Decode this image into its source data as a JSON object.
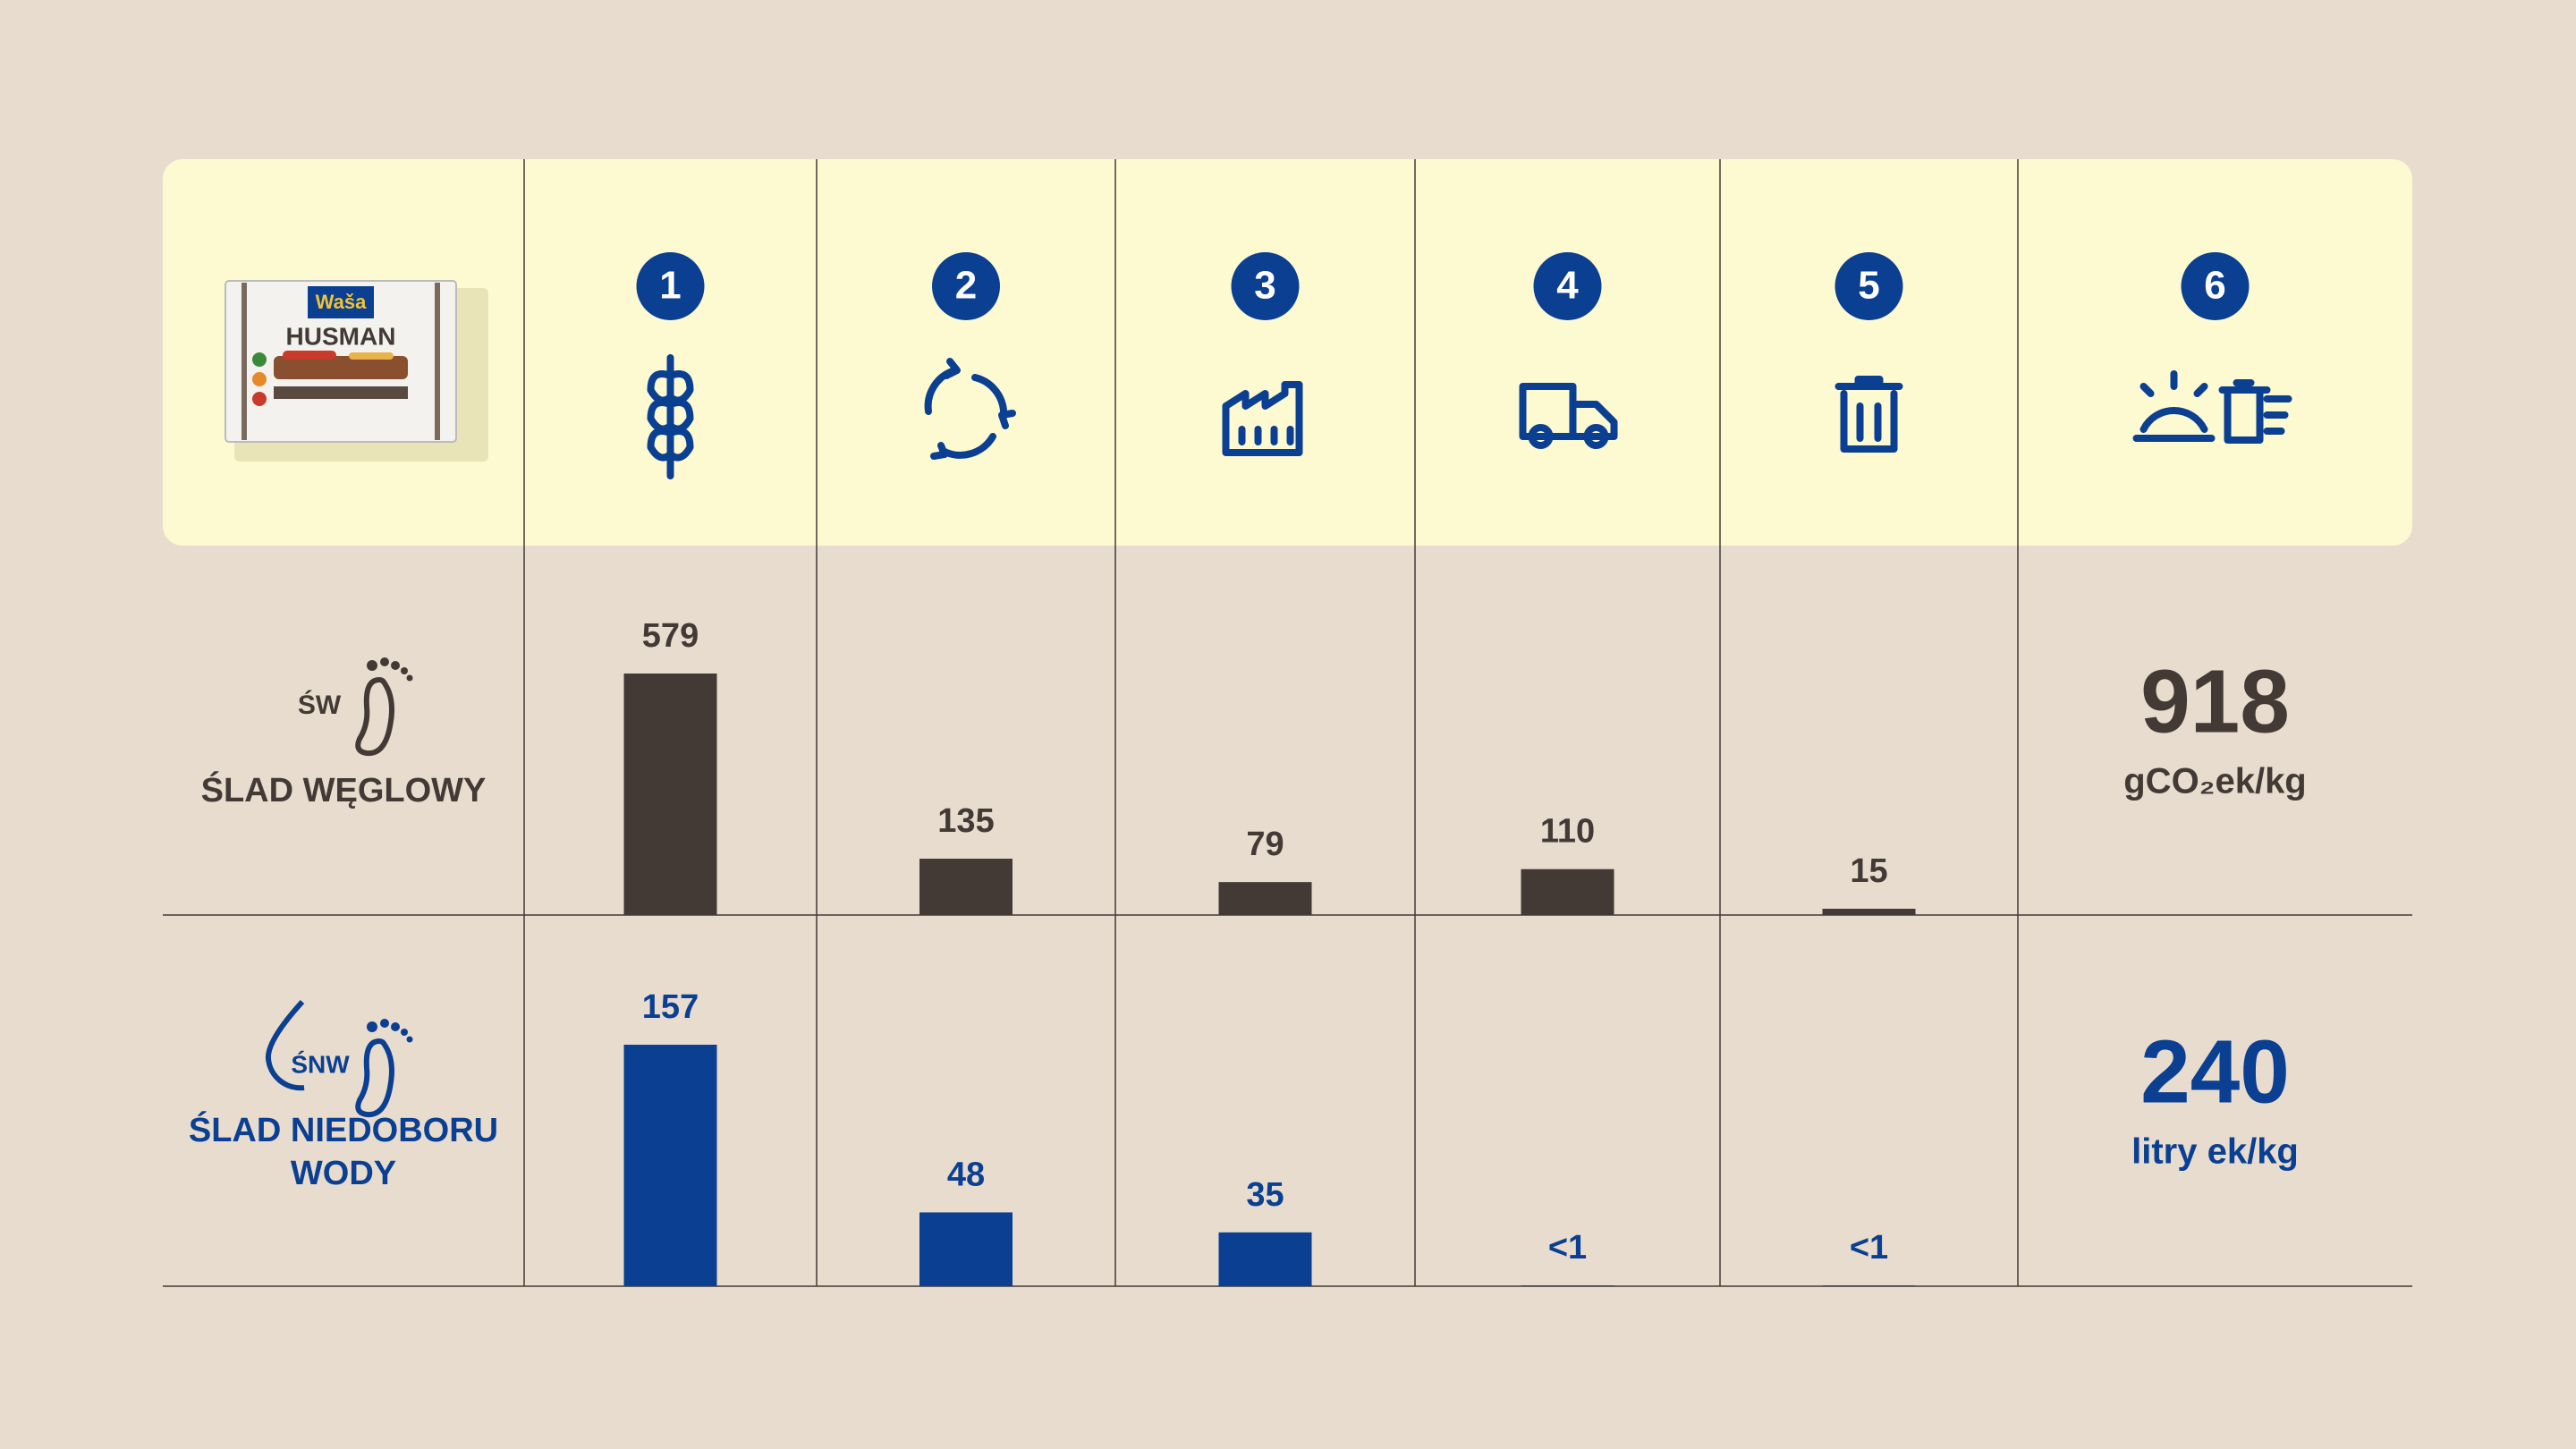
{
  "product": {
    "brand": "Waša",
    "name": "HUSMAN"
  },
  "stages": [
    "1",
    "2",
    "3",
    "4",
    "5",
    "6"
  ],
  "rows": [
    {
      "badge": "ŚW",
      "label": "ŚLAD WĘGLOWY",
      "color": "#433a36",
      "values": [
        579,
        135,
        79,
        110,
        15
      ],
      "total": 918,
      "unit": "gCO₂ek/kg"
    },
    {
      "badge": "ŚNW",
      "label": "ŚLAD NIEDOBORU WODY",
      "color": "#0a3f91",
      "values": [
        157,
        48,
        35,
        0.5,
        0.5
      ],
      "value_labels": [
        "157",
        "48",
        "35",
        "<1",
        "<1"
      ],
      "total": 240,
      "unit": "litry ek/kg"
    }
  ]
}
